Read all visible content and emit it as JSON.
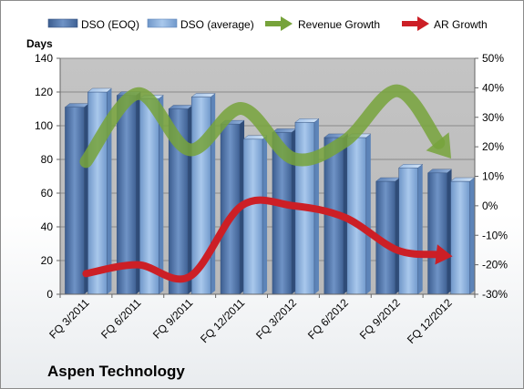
{
  "company": "Aspen Technology",
  "chart_data": {
    "type": "bar",
    "categories": [
      "FQ 3/2011",
      "FQ 6/2011",
      "FQ 9/2011",
      "FQ 12/2011",
      "FQ 3/2012",
      "FQ 6/2012",
      "FQ 9/2012",
      "FQ 12/2012"
    ],
    "ylabel": "Days",
    "ylim": [
      0,
      140
    ],
    "yticks": [
      0,
      20,
      40,
      60,
      80,
      100,
      120,
      140
    ],
    "y2lim": [
      -30,
      50
    ],
    "y2ticks": [
      "-30%",
      "-20%",
      "-10%",
      "0%",
      "10%",
      "20%",
      "30%",
      "40%",
      "50%"
    ],
    "grid": true,
    "legend_position": "top",
    "series": [
      {
        "name": "DSO (EOQ)",
        "kind": "bar",
        "color": "#5b7fb5",
        "values": [
          111,
          118,
          110,
          101,
          96,
          93,
          67,
          72
        ]
      },
      {
        "name": "DSO (average)",
        "kind": "bar",
        "color": "#8db3e2",
        "values": [
          120,
          116,
          117,
          92,
          102,
          93,
          75,
          67
        ]
      },
      {
        "name": "Revenue Growth",
        "kind": "arrow-line",
        "axis": "right",
        "color": "#77a33b",
        "values": [
          15,
          38,
          19,
          33,
          16,
          22,
          39,
          17
        ]
      },
      {
        "name": "AR Growth",
        "kind": "arrow-line",
        "axis": "right",
        "color": "#cc1f26",
        "values": [
          -23,
          -20,
          -24,
          0,
          0,
          -4,
          -15,
          -17
        ]
      }
    ]
  }
}
